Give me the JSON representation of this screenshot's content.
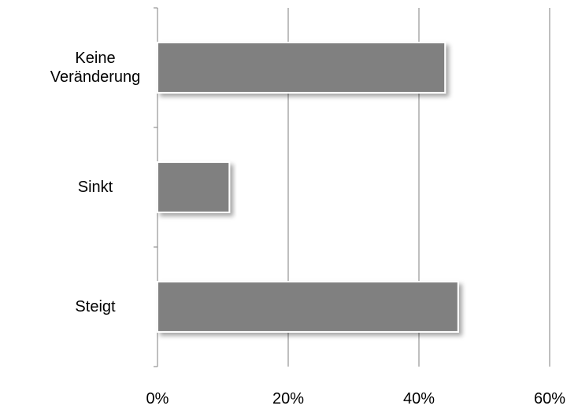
{
  "chart_data": {
    "type": "barh",
    "categories": [
      "Keine Veränderung",
      "Sinkt",
      "Steigt"
    ],
    "values": [
      44,
      11,
      46
    ],
    "color": "#808080",
    "xlim": [
      0,
      60
    ],
    "xticks": [
      {
        "value": 0,
        "label": "0%"
      },
      {
        "value": 20,
        "label": "20%"
      },
      {
        "value": 40,
        "label": "40%"
      },
      {
        "value": 60,
        "label": "60%"
      }
    ],
    "grid": true
  }
}
